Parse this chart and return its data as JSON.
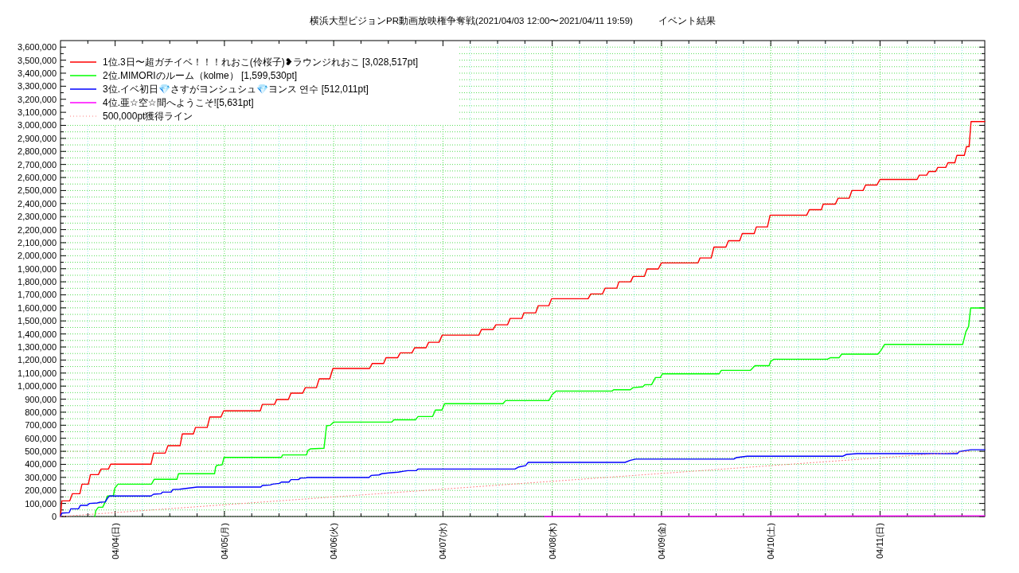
{
  "chart_data": {
    "type": "line",
    "title": "横浜大型ビジョンPR動画放映権争奪戦(2021/04/03 12:00〜2021/04/11 19:59)          イベント結果",
    "xlim": [
      "2021-04-03T12:00",
      "2021-04-11T23:00"
    ],
    "xticks": [
      {
        "value": "2021-04-03T18:00",
        "label": null
      },
      {
        "value": "2021-04-04T00:00",
        "label": "04/04(日)"
      },
      {
        "value": "2021-04-04T06:00",
        "label": null
      },
      {
        "value": "2021-04-04T12:00",
        "label": null
      },
      {
        "value": "2021-04-04T18:00",
        "label": null
      },
      {
        "value": "2021-04-05T00:00",
        "label": "04/05(月)"
      },
      {
        "value": "2021-04-05T06:00",
        "label": null
      },
      {
        "value": "2021-04-05T12:00",
        "label": null
      },
      {
        "value": "2021-04-05T18:00",
        "label": null
      },
      {
        "value": "2021-04-06T00:00",
        "label": "04/06(火)"
      },
      {
        "value": "2021-04-06T06:00",
        "label": null
      },
      {
        "value": "2021-04-06T12:00",
        "label": null
      },
      {
        "value": "2021-04-06T18:00",
        "label": null
      },
      {
        "value": "2021-04-07T00:00",
        "label": "04/07(水)"
      },
      {
        "value": "2021-04-07T06:00",
        "label": null
      },
      {
        "value": "2021-04-07T12:00",
        "label": null
      },
      {
        "value": "2021-04-07T18:00",
        "label": null
      },
      {
        "value": "2021-04-08T00:00",
        "label": "04/08(木)"
      },
      {
        "value": "2021-04-08T06:00",
        "label": null
      },
      {
        "value": "2021-04-08T12:00",
        "label": null
      },
      {
        "value": "2021-04-08T18:00",
        "label": null
      },
      {
        "value": "2021-04-09T00:00",
        "label": "04/09(金)"
      },
      {
        "value": "2021-04-09T06:00",
        "label": null
      },
      {
        "value": "2021-04-09T12:00",
        "label": null
      },
      {
        "value": "2021-04-09T18:00",
        "label": null
      },
      {
        "value": "2021-04-10T00:00",
        "label": "04/10(土)"
      },
      {
        "value": "2021-04-10T06:00",
        "label": null
      },
      {
        "value": "2021-04-10T12:00",
        "label": null
      },
      {
        "value": "2021-04-10T18:00",
        "label": null
      },
      {
        "value": "2021-04-11T00:00",
        "label": "04/11(日)"
      },
      {
        "value": "2021-04-11T06:00",
        "label": null
      },
      {
        "value": "2021-04-11T12:00",
        "label": null
      },
      {
        "value": "2021-04-11T18:00",
        "label": null
      }
    ],
    "ylim": [
      0,
      3650000
    ],
    "yticks": [
      0,
      {
        "value": 50000,
        "label": null
      },
      {
        "value": 100000,
        "label": "100,000"
      },
      {
        "value": 150000,
        "label": null
      },
      {
        "value": 200000,
        "label": "200,000"
      },
      {
        "value": 250000,
        "label": null
      },
      {
        "value": 300000,
        "label": "300,000"
      },
      {
        "value": 350000,
        "label": null
      },
      {
        "value": 400000,
        "label": "400,000"
      },
      {
        "value": 450000,
        "label": null
      },
      {
        "value": 500000,
        "label": "500,000"
      },
      {
        "value": 550000,
        "label": null
      },
      {
        "value": 600000,
        "label": "600,000"
      },
      {
        "value": 650000,
        "label": null
      },
      {
        "value": 700000,
        "label": "700,000"
      },
      {
        "value": 750000,
        "label": null
      },
      {
        "value": 800000,
        "label": "800,000"
      },
      {
        "value": 850000,
        "label": null
      },
      {
        "value": 900000,
        "label": "900,000"
      },
      {
        "value": 950000,
        "label": null
      },
      {
        "value": 1000000,
        "label": "1,000,000"
      },
      {
        "value": 1050000,
        "label": null
      },
      {
        "value": 1100000,
        "label": "1,100,000"
      },
      {
        "value": 1150000,
        "label": null
      },
      {
        "value": 1200000,
        "label": "1,200,000"
      },
      {
        "value": 1250000,
        "label": null
      },
      {
        "value": 1300000,
        "label": "1,300,000"
      },
      {
        "value": 1350000,
        "label": null
      },
      {
        "value": 1400000,
        "label": "1,400,000"
      },
      {
        "value": 1450000,
        "label": null
      },
      {
        "value": 1500000,
        "label": "1,500,000"
      },
      {
        "value": 1550000,
        "label": null
      },
      {
        "value": 1600000,
        "label": "1,600,000"
      },
      {
        "value": 1650000,
        "label": null
      },
      {
        "value": 1700000,
        "label": "1,700,000"
      },
      {
        "value": 1750000,
        "label": null
      },
      {
        "value": 1800000,
        "label": "1,800,000"
      },
      {
        "value": 1850000,
        "label": null
      },
      {
        "value": 1900000,
        "label": "1,900,000"
      },
      {
        "value": 1950000,
        "label": null
      },
      {
        "value": 2000000,
        "label": "2,000,000"
      },
      {
        "value": 2050000,
        "label": null
      },
      {
        "value": 2100000,
        "label": "2,100,000"
      },
      {
        "value": 2150000,
        "label": null
      },
      {
        "value": 2200000,
        "label": "2,200,000"
      },
      {
        "value": 2250000,
        "label": null
      },
      {
        "value": 2300000,
        "label": "2,300,000"
      },
      {
        "value": 2350000,
        "label": null
      },
      {
        "value": 2400000,
        "label": "2,400,000"
      },
      {
        "value": 2450000,
        "label": null
      },
      {
        "value": 2500000,
        "label": "2,500,000"
      },
      {
        "value": 2550000,
        "label": null
      },
      {
        "value": 2600000,
        "label": "2,600,000"
      },
      {
        "value": 2650000,
        "label": null
      },
      {
        "value": 2700000,
        "label": "2,700,000"
      },
      {
        "value": 2750000,
        "label": null
      },
      {
        "value": 2800000,
        "label": "2,800,000"
      },
      {
        "value": 2850000,
        "label": null
      },
      {
        "value": 2900000,
        "label": "2,900,000"
      },
      {
        "value": 2950000,
        "label": null
      },
      {
        "value": 3000000,
        "label": "3,000,000"
      },
      {
        "value": 3050000,
        "label": null
      },
      {
        "value": 3100000,
        "label": "3,100,000"
      },
      {
        "value": 3150000,
        "label": null
      },
      {
        "value": 3200000,
        "label": "3,200,000"
      },
      {
        "value": 3250000,
        "label": null
      },
      {
        "value": 3300000,
        "label": "3,300,000"
      },
      {
        "value": 3350000,
        "label": null
      },
      {
        "value": 3400000,
        "label": "3,400,000"
      },
      {
        "value": 3450000,
        "label": null
      },
      {
        "value": 3500000,
        "label": "3,500,000"
      },
      {
        "value": 3550000,
        "label": null
      },
      {
        "value": 3600000,
        "label": "3,600,000"
      }
    ],
    "grid": true,
    "legend": "top left",
    "ref_lines": [
      {
        "axis": "y",
        "value": 500000,
        "color": "#b0a060",
        "line_style": "dotted"
      }
    ],
    "series": [
      {
        "name": "1位.3日〜超ガチイベ！！！れおこ(伶桜子)❥ラウンジれおこ [3,028,517pt]",
        "color": "#ff0000",
        "x": [
          "2021-04-03T12:00",
          "2021-04-03T12:17",
          "2021-04-03T14:02",
          "2021-04-03T14:37",
          "2021-04-03T16:15",
          "2021-04-03T16:43",
          "2021-04-03T18:07",
          "2021-04-03T18:34",
          "2021-04-03T20:19",
          "2021-04-03T20:55",
          "2021-04-03T22:32",
          "2021-04-03T23:01",
          "2021-04-04T07:52",
          "2021-04-04T08:27",
          "2021-04-04T11:00",
          "2021-04-04T11:36",
          "2021-04-04T14:16",
          "2021-04-04T14:45",
          "2021-04-04T17:11",
          "2021-04-04T17:39",
          "2021-04-04T20:13",
          "2021-04-04T20:48",
          "2021-04-04T23:14",
          "2021-04-04T23:50",
          "2021-04-05T07:53",
          "2021-04-05T08:20",
          "2021-04-05T11:01",
          "2021-04-05T11:29",
          "2021-04-05T14:03",
          "2021-04-05T14:37",
          "2021-04-05T17:12",
          "2021-04-05T17:46",
          "2021-04-05T20:13",
          "2021-04-05T20:49",
          "2021-04-05T23:08",
          "2021-04-05T23:50",
          "2021-04-06T07:53",
          "2021-04-06T08:27",
          "2021-04-06T10:58",
          "2021-04-06T11:29",
          "2021-04-06T14:03",
          "2021-04-06T14:38",
          "2021-04-06T17:11",
          "2021-04-06T17:47",
          "2021-04-06T20:17",
          "2021-04-06T20:52",
          "2021-04-06T23:08",
          "2021-04-06T23:50",
          "2021-04-07T07:53",
          "2021-04-07T08:28",
          "2021-04-07T11:01",
          "2021-04-07T11:37",
          "2021-04-07T14:10",
          "2021-04-07T14:46",
          "2021-04-07T17:19",
          "2021-04-07T17:47",
          "2021-04-07T20:22",
          "2021-04-07T20:56",
          "2021-04-07T23:16",
          "2021-04-07T23:51",
          "2021-04-08T07:53",
          "2021-04-08T08:28",
          "2021-04-08T11:02",
          "2021-04-08T11:37",
          "2021-04-08T14:11",
          "2021-04-08T14:38",
          "2021-04-08T17:13",
          "2021-04-08T17:47",
          "2021-04-08T20:14",
          "2021-04-08T20:50",
          "2021-04-08T23:17",
          "2021-04-08T23:59",
          "2021-04-09T08:01",
          "2021-04-09T08:28",
          "2021-04-09T10:55",
          "2021-04-09T11:31",
          "2021-04-09T14:08",
          "2021-04-09T14:43",
          "2021-04-09T17:10",
          "2021-04-09T17:44",
          "2021-04-09T20:22",
          "2021-04-09T20:50",
          "2021-04-09T23:16",
          "2021-04-09T23:51",
          "2021-04-10T07:53",
          "2021-04-10T08:29",
          "2021-04-10T11:07",
          "2021-04-10T11:31",
          "2021-04-10T14:11",
          "2021-04-10T14:47",
          "2021-04-10T17:14",
          "2021-04-10T17:49",
          "2021-04-10T20:16",
          "2021-04-10T20:50",
          "2021-04-10T23:17",
          "2021-04-10T23:59",
          "2021-04-11T08:08",
          "2021-04-11T08:37",
          "2021-04-11T10:14",
          "2021-04-11T10:43",
          "2021-04-11T12:13",
          "2021-04-11T12:41",
          "2021-04-11T14:26",
          "2021-04-11T14:55",
          "2021-04-11T16:25",
          "2021-04-11T16:53",
          "2021-04-11T18:31",
          "2021-04-11T18:59",
          "2021-04-11T19:34",
          "2021-04-11T19:59",
          "2021-04-11T23:00"
        ],
        "values": [
          0,
          120000,
          120000,
          175000,
          175000,
          248000,
          248000,
          321000,
          321000,
          364000,
          364000,
          401000,
          401000,
          486000,
          486000,
          543000,
          543000,
          633000,
          633000,
          683000,
          683000,
          763000,
          763000,
          810000,
          810000,
          860000,
          860000,
          897000,
          897000,
          946000,
          946000,
          988000,
          988000,
          1056000,
          1056000,
          1135000,
          1135000,
          1173000,
          1173000,
          1218000,
          1218000,
          1255000,
          1255000,
          1294000,
          1294000,
          1336000,
          1336000,
          1391000,
          1391000,
          1434000,
          1434000,
          1470000,
          1470000,
          1519000,
          1519000,
          1562000,
          1562000,
          1617000,
          1617000,
          1670000,
          1670000,
          1707000,
          1707000,
          1751000,
          1751000,
          1800000,
          1800000,
          1841000,
          1841000,
          1898000,
          1898000,
          1945000,
          1945000,
          1983000,
          1983000,
          2066000,
          2066000,
          2115000,
          2115000,
          2170000,
          2170000,
          2221000,
          2221000,
          2311000,
          2311000,
          2353000,
          2353000,
          2396000,
          2396000,
          2441000,
          2441000,
          2500000,
          2500000,
          2542000,
          2542000,
          2585000,
          2585000,
          2618000,
          2618000,
          2646000,
          2646000,
          2677000,
          2677000,
          2713000,
          2713000,
          2770000,
          2770000,
          2837000,
          2837000,
          3028517,
          3028517
        ]
      },
      {
        "name": "2位.MIMORIのルーム（kolme） [1,599,530pt]",
        "color": "#00ff00",
        "x": [
          "2021-04-03T19:31",
          "2021-04-03T19:45",
          "2021-04-03T20:19",
          "2021-04-03T21:16",
          "2021-04-03T21:50",
          "2021-04-03T22:19",
          "2021-04-03T23:35",
          "2021-04-03T23:56",
          "2021-04-04T00:38",
          "2021-04-04T07:59",
          "2021-04-04T08:34",
          "2021-04-04T13:34",
          "2021-04-04T13:55",
          "2021-04-04T21:50",
          "2021-04-04T22:05",
          "2021-04-04T22:19",
          "2021-04-04T23:29",
          "2021-04-04T23:56",
          "2021-04-05T12:31",
          "2021-04-05T12:46",
          "2021-04-05T18:01",
          "2021-04-05T18:22",
          "2021-04-05T18:56",
          "2021-04-05T21:52",
          "2021-04-05T22:26",
          "2021-04-05T23:16",
          "2021-04-05T23:58",
          "2021-04-06T12:43",
          "2021-04-06T13:14",
          "2021-04-06T17:58",
          "2021-04-06T18:32",
          "2021-04-06T21:44",
          "2021-04-06T22:20",
          "2021-04-06T23:47",
          "2021-04-07T00:22",
          "2021-04-07T13:11",
          "2021-04-07T13:46",
          "2021-04-07T23:16",
          "2021-04-07T23:58",
          "2021-04-08T00:50",
          "2021-04-08T13:08",
          "2021-04-08T13:29",
          "2021-04-08T17:10",
          "2021-04-08T17:44",
          "2021-04-08T19:53",
          "2021-04-08T20:22",
          "2021-04-08T21:49",
          "2021-04-08T22:41",
          "2021-04-08T23:44",
          "2021-04-09T00:12",
          "2021-04-09T12:40",
          "2021-04-09T13:08",
          "2021-04-09T19:33",
          "2021-04-09T20:32",
          "2021-04-09T23:38",
          "2021-04-09T23:59",
          "2021-04-10T00:41",
          "2021-04-10T12:26",
          "2021-04-10T13:08",
          "2021-04-10T15:01",
          "2021-04-10T15:35",
          "2021-04-10T23:31",
          "2021-04-11T00:13",
          "2021-04-11T01:01",
          "2021-04-11T18:09",
          "2021-04-11T18:51",
          "2021-04-11T19:27",
          "2021-04-11T19:54",
          "2021-04-11T23:00"
        ],
        "values": [
          0,
          45000,
          71000,
          71000,
          112000,
          157000,
          157000,
          218000,
          248000,
          248000,
          285000,
          285000,
          328000,
          328000,
          380000,
          392000,
          396000,
          453000,
          453000,
          472000,
          472000,
          508000,
          519000,
          523000,
          696000,
          700000,
          724000,
          724000,
          742000,
          742000,
          767000,
          767000,
          816000,
          816000,
          865000,
          865000,
          889000,
          889000,
          934000,
          962000,
          962000,
          972000,
          972000,
          988000,
          995000,
          1011000,
          1011000,
          1066000,
          1066000,
          1094000,
          1094000,
          1121000,
          1121000,
          1157000,
          1157000,
          1190000,
          1206000,
          1206000,
          1218000,
          1218000,
          1245000,
          1245000,
          1275000,
          1320000,
          1320000,
          1417000,
          1458000,
          1599530,
          1599530
        ]
      },
      {
        "name": "3位.イベ初日💎さすがヨンシュシュ💎ヨンス 연수 [512,011pt]",
        "color": "#0000ff",
        "x": [
          "2021-04-03T12:00",
          "2021-04-03T12:17",
          "2021-04-03T13:55",
          "2021-04-03T14:16",
          "2021-04-03T15:57",
          "2021-04-03T16:22",
          "2021-04-03T17:52",
          "2021-04-03T18:21",
          "2021-04-03T20:05",
          "2021-04-03T20:26",
          "2021-04-03T21:50",
          "2021-04-03T22:19",
          "2021-04-03T22:46",
          "2021-04-04T07:52",
          "2021-04-04T08:27",
          "2021-04-04T10:05",
          "2021-04-04T10:26",
          "2021-04-04T12:18",
          "2021-04-04T12:39",
          "2021-04-04T14:09",
          "2021-04-04T16:15",
          "2021-04-04T18:00",
          "2021-04-05T07:59",
          "2021-04-05T08:20",
          "2021-04-05T10:05",
          "2021-04-05T10:33",
          "2021-04-05T12:04",
          "2021-04-05T12:31",
          "2021-04-05T14:10",
          "2021-04-05T14:37",
          "2021-04-05T16:16",
          "2021-04-05T16:43",
          "2021-04-05T17:46",
          "2021-04-05T18:14",
          "2021-04-06T07:45",
          "2021-04-06T08:14",
          "2021-04-06T09:58",
          "2021-04-06T10:33",
          "2021-04-06T12:07",
          "2021-04-06T14:10",
          "2021-04-06T16:13",
          "2021-04-06T18:08",
          "2021-04-06T18:32",
          "2021-04-07T15:49",
          "2021-04-07T16:41",
          "2021-04-07T18:08",
          "2021-04-07T18:43",
          "2021-04-08T15:59",
          "2021-04-08T17:10",
          "2021-04-08T18:19",
          "2021-04-09T15:53",
          "2021-04-09T16:28",
          "2021-04-09T18:47",
          "2021-04-10T15:46",
          "2021-04-10T16:38",
          "2021-04-10T18:59",
          "2021-04-11T17:00",
          "2021-04-11T17:24",
          "2021-04-11T19:59",
          "2021-04-11T23:00"
        ],
        "values": [
          0,
          26000,
          30000,
          59000,
          59000,
          85000,
          85000,
          100000,
          104000,
          108000,
          112000,
          140000,
          157000,
          157000,
          171000,
          175000,
          187000,
          187000,
          207000,
          209000,
          218000,
          226000,
          226000,
          238000,
          242000,
          248000,
          254000,
          264000,
          264000,
          283000,
          283000,
          295000,
          295000,
          299000,
          299000,
          315000,
          319000,
          328000,
          334000,
          340000,
          352000,
          352000,
          364000,
          364000,
          380000,
          390000,
          415000,
          415000,
          431000,
          440000,
          440000,
          452000,
          462000,
          462000,
          476000,
          482000,
          482000,
          498000,
          512011,
          512011
        ]
      },
      {
        "name": "4位.亜☆空☆間へようこそ![5,631pt]",
        "color": "#ff00ff",
        "x": [
          "2021-04-07T22:20",
          "2021-04-11T19:59",
          "2021-04-11T23:00"
        ],
        "values": [
          0,
          5631,
          5631
        ]
      },
      {
        "name": "500,000pt獲得ライン",
        "color": "#ff8080",
        "line_style": "dotted",
        "x": [
          "2021-04-03T12:00",
          "2021-04-11T19:59"
        ],
        "values": [
          0,
          500000
        ]
      }
    ]
  }
}
